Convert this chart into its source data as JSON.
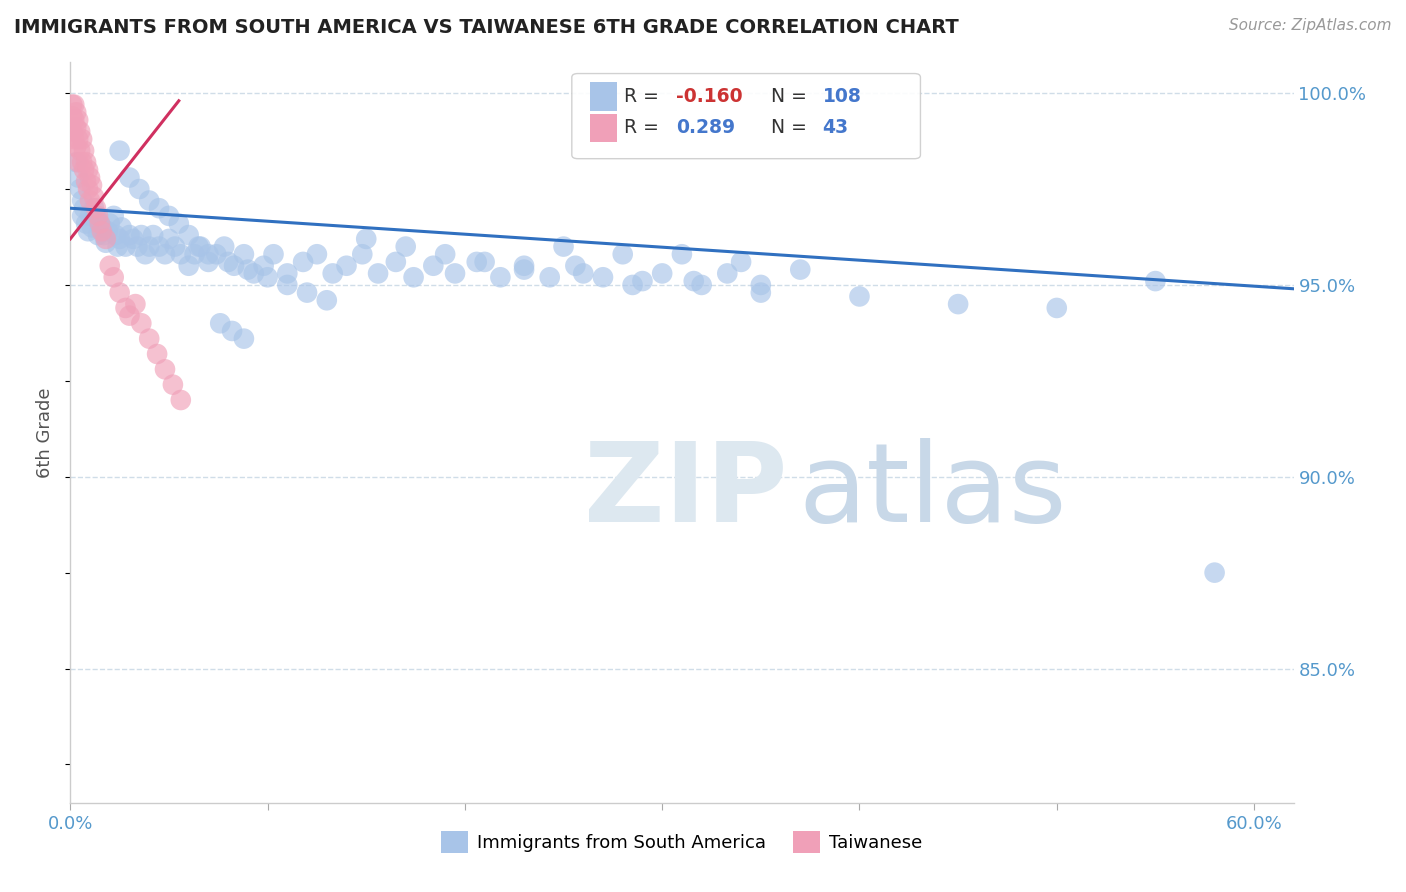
{
  "title": "IMMIGRANTS FROM SOUTH AMERICA VS TAIWANESE 6TH GRADE CORRELATION CHART",
  "source": "Source: ZipAtlas.com",
  "ylabel": "6th Grade",
  "xlim": [
    0.0,
    0.62
  ],
  "ylim": [
    0.815,
    1.008
  ],
  "xtick_positions": [
    0.0,
    0.1,
    0.2,
    0.3,
    0.4,
    0.5,
    0.6
  ],
  "xtick_labels": [
    "0.0%",
    "",
    "",
    "",
    "",
    "",
    "60.0%"
  ],
  "yticks_right": [
    1.0,
    0.95,
    0.9,
    0.85
  ],
  "ytick_labels_right": [
    "100.0%",
    "95.0%",
    "90.0%",
    "85.0%"
  ],
  "blue_color": "#a8c4e8",
  "pink_color": "#f0a0b8",
  "blue_trend_color": "#3070c0",
  "pink_trend_color": "#d03060",
  "grid_color": "#d0dde8",
  "background_color": "#ffffff",
  "legend_label_blue": "Immigrants from South America",
  "legend_label_pink": "Taiwanese",
  "blue_R": "-0.160",
  "blue_N": "108",
  "pink_R": "0.289",
  "pink_N": "43",
  "blue_trend_x": [
    0.0,
    0.62
  ],
  "blue_trend_y": [
    0.97,
    0.949
  ],
  "pink_trend_x": [
    0.0,
    0.055
  ],
  "pink_trend_y": [
    0.962,
    0.998
  ],
  "blue_scatter_x": [
    0.003,
    0.004,
    0.005,
    0.006,
    0.006,
    0.007,
    0.008,
    0.009,
    0.01,
    0.011,
    0.012,
    0.013,
    0.014,
    0.015,
    0.016,
    0.017,
    0.018,
    0.019,
    0.02,
    0.022,
    0.023,
    0.024,
    0.025,
    0.026,
    0.028,
    0.03,
    0.032,
    0.034,
    0.036,
    0.038,
    0.04,
    0.042,
    0.045,
    0.048,
    0.05,
    0.053,
    0.056,
    0.06,
    0.063,
    0.066,
    0.07,
    0.074,
    0.078,
    0.083,
    0.088,
    0.093,
    0.098,
    0.103,
    0.11,
    0.118,
    0.125,
    0.133,
    0.14,
    0.148,
    0.156,
    0.165,
    0.174,
    0.184,
    0.195,
    0.206,
    0.218,
    0.23,
    0.243,
    0.256,
    0.27,
    0.285,
    0.3,
    0.316,
    0.333,
    0.35,
    0.025,
    0.03,
    0.035,
    0.04,
    0.045,
    0.05,
    0.055,
    0.06,
    0.065,
    0.07,
    0.08,
    0.09,
    0.1,
    0.11,
    0.12,
    0.13,
    0.15,
    0.17,
    0.19,
    0.21,
    0.23,
    0.26,
    0.29,
    0.32,
    0.35,
    0.4,
    0.45,
    0.5,
    0.55,
    0.58,
    0.31,
    0.34,
    0.37,
    0.25,
    0.28,
    0.076,
    0.082,
    0.088
  ],
  "blue_scatter_y": [
    0.982,
    0.978,
    0.975,
    0.972,
    0.968,
    0.97,
    0.966,
    0.964,
    0.968,
    0.965,
    0.97,
    0.968,
    0.963,
    0.966,
    0.965,
    0.963,
    0.961,
    0.964,
    0.966,
    0.968,
    0.963,
    0.96,
    0.962,
    0.965,
    0.96,
    0.963,
    0.962,
    0.96,
    0.963,
    0.958,
    0.96,
    0.963,
    0.96,
    0.958,
    0.962,
    0.96,
    0.958,
    0.955,
    0.958,
    0.96,
    0.956,
    0.958,
    0.96,
    0.955,
    0.958,
    0.953,
    0.955,
    0.958,
    0.953,
    0.956,
    0.958,
    0.953,
    0.955,
    0.958,
    0.953,
    0.956,
    0.952,
    0.955,
    0.953,
    0.956,
    0.952,
    0.955,
    0.952,
    0.955,
    0.952,
    0.95,
    0.953,
    0.951,
    0.953,
    0.95,
    0.985,
    0.978,
    0.975,
    0.972,
    0.97,
    0.968,
    0.966,
    0.963,
    0.96,
    0.958,
    0.956,
    0.954,
    0.952,
    0.95,
    0.948,
    0.946,
    0.962,
    0.96,
    0.958,
    0.956,
    0.954,
    0.953,
    0.951,
    0.95,
    0.948,
    0.947,
    0.945,
    0.944,
    0.951,
    0.875,
    0.958,
    0.956,
    0.954,
    0.96,
    0.958,
    0.94,
    0.938,
    0.936
  ],
  "pink_scatter_x": [
    0.001,
    0.001,
    0.001,
    0.002,
    0.002,
    0.002,
    0.003,
    0.003,
    0.003,
    0.004,
    0.004,
    0.004,
    0.005,
    0.005,
    0.006,
    0.006,
    0.007,
    0.007,
    0.008,
    0.008,
    0.009,
    0.009,
    0.01,
    0.01,
    0.011,
    0.012,
    0.013,
    0.014,
    0.015,
    0.016,
    0.018,
    0.02,
    0.022,
    0.025,
    0.028,
    0.03,
    0.033,
    0.036,
    0.04,
    0.044,
    0.048,
    0.052,
    0.056
  ],
  "pink_scatter_y": [
    0.997,
    0.994,
    0.99,
    0.997,
    0.993,
    0.988,
    0.995,
    0.991,
    0.986,
    0.993,
    0.988,
    0.982,
    0.99,
    0.985,
    0.988,
    0.982,
    0.985,
    0.98,
    0.982,
    0.977,
    0.98,
    0.975,
    0.978,
    0.972,
    0.976,
    0.973,
    0.97,
    0.968,
    0.966,
    0.964,
    0.962,
    0.955,
    0.952,
    0.948,
    0.944,
    0.942,
    0.945,
    0.94,
    0.936,
    0.932,
    0.928,
    0.924,
    0.92
  ]
}
